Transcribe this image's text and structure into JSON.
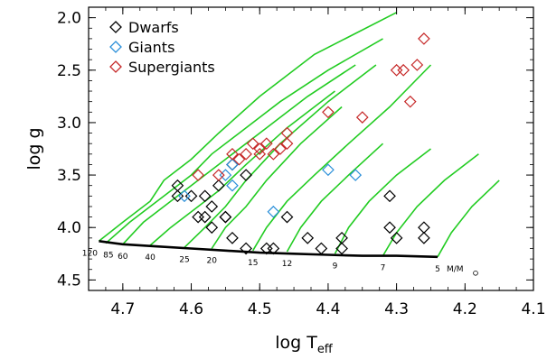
{
  "chart_data": {
    "type": "scatter",
    "xlabel": "log T",
    "xlabel_sub": "eff",
    "ylabel": "log g",
    "xlim": [
      4.75,
      4.1
    ],
    "ylim": [
      4.6,
      1.9
    ],
    "x_ticks": [
      4.7,
      4.6,
      4.5,
      4.4,
      4.3,
      4.2,
      4.1
    ],
    "x_tick_labels": [
      "4.7",
      "4.6",
      "4.5",
      "4.4",
      "4.3",
      "4.2",
      "4.1"
    ],
    "y_ticks": [
      2.0,
      2.5,
      3.0,
      3.5,
      4.0,
      4.5
    ],
    "y_tick_labels": [
      "2.0",
      "2.5",
      "3.0",
      "3.5",
      "4.0",
      "4.5"
    ],
    "grid": false,
    "legend_placement": "top-left",
    "colors": {
      "dwarfs": "#000000",
      "giants": "#2a8fd9",
      "supergiants": "#c62828",
      "tracks": "#22cc22",
      "zams": "#000000"
    },
    "series": [
      {
        "name": "Dwarfs",
        "marker": "diamond",
        "points": [
          [
            4.62,
            3.6
          ],
          [
            4.62,
            3.7
          ],
          [
            4.6,
            3.7
          ],
          [
            4.58,
            3.7
          ],
          [
            4.58,
            3.9
          ],
          [
            4.59,
            3.9
          ],
          [
            4.57,
            3.8
          ],
          [
            4.57,
            4.0
          ],
          [
            4.56,
            3.6
          ],
          [
            4.55,
            3.9
          ],
          [
            4.55,
            3.9
          ],
          [
            4.54,
            3.4
          ],
          [
            4.54,
            4.1
          ],
          [
            4.52,
            3.5
          ],
          [
            4.52,
            4.2
          ],
          [
            4.49,
            4.2
          ],
          [
            4.48,
            4.2
          ],
          [
            4.46,
            3.9
          ],
          [
            4.43,
            4.1
          ],
          [
            4.41,
            4.2
          ],
          [
            4.38,
            4.1
          ],
          [
            4.38,
            4.2
          ],
          [
            4.31,
            3.7
          ],
          [
            4.31,
            4.0
          ],
          [
            4.3,
            4.1
          ],
          [
            4.26,
            4.0
          ],
          [
            4.26,
            4.1
          ]
        ]
      },
      {
        "name": "Giants",
        "marker": "diamond",
        "points": [
          [
            4.61,
            3.7
          ],
          [
            4.55,
            3.5
          ],
          [
            4.54,
            3.4
          ],
          [
            4.54,
            3.6
          ],
          [
            4.48,
            3.85
          ],
          [
            4.4,
            3.45
          ],
          [
            4.36,
            3.5
          ]
        ]
      },
      {
        "name": "Supergiants",
        "marker": "diamond",
        "points": [
          [
            4.59,
            3.5
          ],
          [
            4.56,
            3.5
          ],
          [
            4.54,
            3.3
          ],
          [
            4.53,
            3.35
          ],
          [
            4.52,
            3.3
          ],
          [
            4.51,
            3.2
          ],
          [
            4.5,
            3.3
          ],
          [
            4.5,
            3.25
          ],
          [
            4.49,
            3.2
          ],
          [
            4.48,
            3.3
          ],
          [
            4.47,
            3.25
          ],
          [
            4.46,
            3.1
          ],
          [
            4.46,
            3.2
          ],
          [
            4.4,
            2.9
          ],
          [
            4.35,
            2.95
          ],
          [
            4.3,
            2.5
          ],
          [
            4.29,
            2.5
          ],
          [
            4.28,
            2.8
          ],
          [
            4.27,
            2.45
          ],
          [
            4.26,
            2.2
          ]
        ]
      }
    ],
    "zams_line": [
      [
        4.735,
        4.13
      ],
      [
        4.7,
        4.16
      ],
      [
        4.65,
        4.18
      ],
      [
        4.6,
        4.2
      ],
      [
        4.55,
        4.22
      ],
      [
        4.5,
        4.24
      ],
      [
        4.45,
        4.25
      ],
      [
        4.4,
        4.26
      ],
      [
        4.35,
        4.27
      ],
      [
        4.3,
        4.27
      ],
      [
        4.24,
        4.28
      ]
    ],
    "tracks": [
      {
        "mass": "120",
        "points": [
          [
            4.735,
            4.13
          ],
          [
            4.7,
            3.95
          ],
          [
            4.66,
            3.75
          ],
          [
            4.64,
            3.55
          ],
          [
            4.62,
            3.45
          ],
          [
            4.6,
            3.35
          ],
          [
            4.56,
            3.1
          ],
          [
            4.5,
            2.75
          ],
          [
            4.42,
            2.35
          ],
          [
            4.3,
            1.95
          ]
        ]
      },
      {
        "mass": "85",
        "points": [
          [
            4.725,
            4.15
          ],
          [
            4.69,
            3.95
          ],
          [
            4.65,
            3.75
          ],
          [
            4.62,
            3.6
          ],
          [
            4.6,
            3.5
          ],
          [
            4.57,
            3.3
          ],
          [
            4.53,
            3.1
          ],
          [
            4.47,
            2.8
          ],
          [
            4.4,
            2.5
          ],
          [
            4.32,
            2.2
          ]
        ]
      },
      {
        "mass": "60",
        "points": [
          [
            4.7,
            4.16
          ],
          [
            4.67,
            3.95
          ],
          [
            4.63,
            3.75
          ],
          [
            4.6,
            3.6
          ],
          [
            4.55,
            3.35
          ],
          [
            4.49,
            3.05
          ],
          [
            4.43,
            2.75
          ],
          [
            4.36,
            2.45
          ]
        ]
      },
      {
        "mass": "40",
        "points": [
          [
            4.66,
            4.17
          ],
          [
            4.63,
            4.0
          ],
          [
            4.59,
            3.8
          ],
          [
            4.56,
            3.65
          ],
          [
            4.52,
            3.4
          ],
          [
            4.46,
            3.05
          ],
          [
            4.39,
            2.7
          ]
        ]
      },
      {
        "mass": "25",
        "points": [
          [
            4.61,
            4.19
          ],
          [
            4.58,
            4.0
          ],
          [
            4.55,
            3.8
          ],
          [
            4.52,
            3.55
          ],
          [
            4.47,
            3.2
          ],
          [
            4.4,
            2.8
          ],
          [
            4.33,
            2.45
          ]
        ]
      },
      {
        "mass": "20",
        "points": [
          [
            4.57,
            4.2
          ],
          [
            4.55,
            4.0
          ],
          [
            4.52,
            3.8
          ],
          [
            4.49,
            3.55
          ],
          [
            4.44,
            3.2
          ],
          [
            4.38,
            2.85
          ]
        ]
      },
      {
        "mass": "15",
        "points": [
          [
            4.51,
            4.22
          ],
          [
            4.49,
            4.0
          ],
          [
            4.46,
            3.75
          ],
          [
            4.42,
            3.5
          ],
          [
            4.37,
            3.2
          ],
          [
            4.31,
            2.85
          ],
          [
            4.25,
            2.45
          ]
        ]
      },
      {
        "mass": "12",
        "points": [
          [
            4.46,
            4.23
          ],
          [
            4.44,
            4.0
          ],
          [
            4.41,
            3.75
          ],
          [
            4.37,
            3.5
          ],
          [
            4.32,
            3.2
          ]
        ]
      },
      {
        "mass": "9",
        "points": [
          [
            4.39,
            4.25
          ],
          [
            4.37,
            4.0
          ],
          [
            4.34,
            3.75
          ],
          [
            4.3,
            3.5
          ],
          [
            4.25,
            3.25
          ]
        ]
      },
      {
        "mass": "7",
        "points": [
          [
            4.32,
            4.27
          ],
          [
            4.3,
            4.05
          ],
          [
            4.27,
            3.8
          ],
          [
            4.23,
            3.55
          ],
          [
            4.18,
            3.3
          ]
        ]
      },
      {
        "mass": "5",
        "points": [
          [
            4.24,
            4.28
          ],
          [
            4.22,
            4.05
          ],
          [
            4.19,
            3.8
          ],
          [
            4.15,
            3.55
          ]
        ]
      }
    ],
    "mass_labels": [
      "120",
      "85",
      "60",
      "40",
      "25",
      "20",
      "15",
      "12",
      "9",
      "7",
      "5"
    ],
    "mass_unit": "M/M"
  }
}
